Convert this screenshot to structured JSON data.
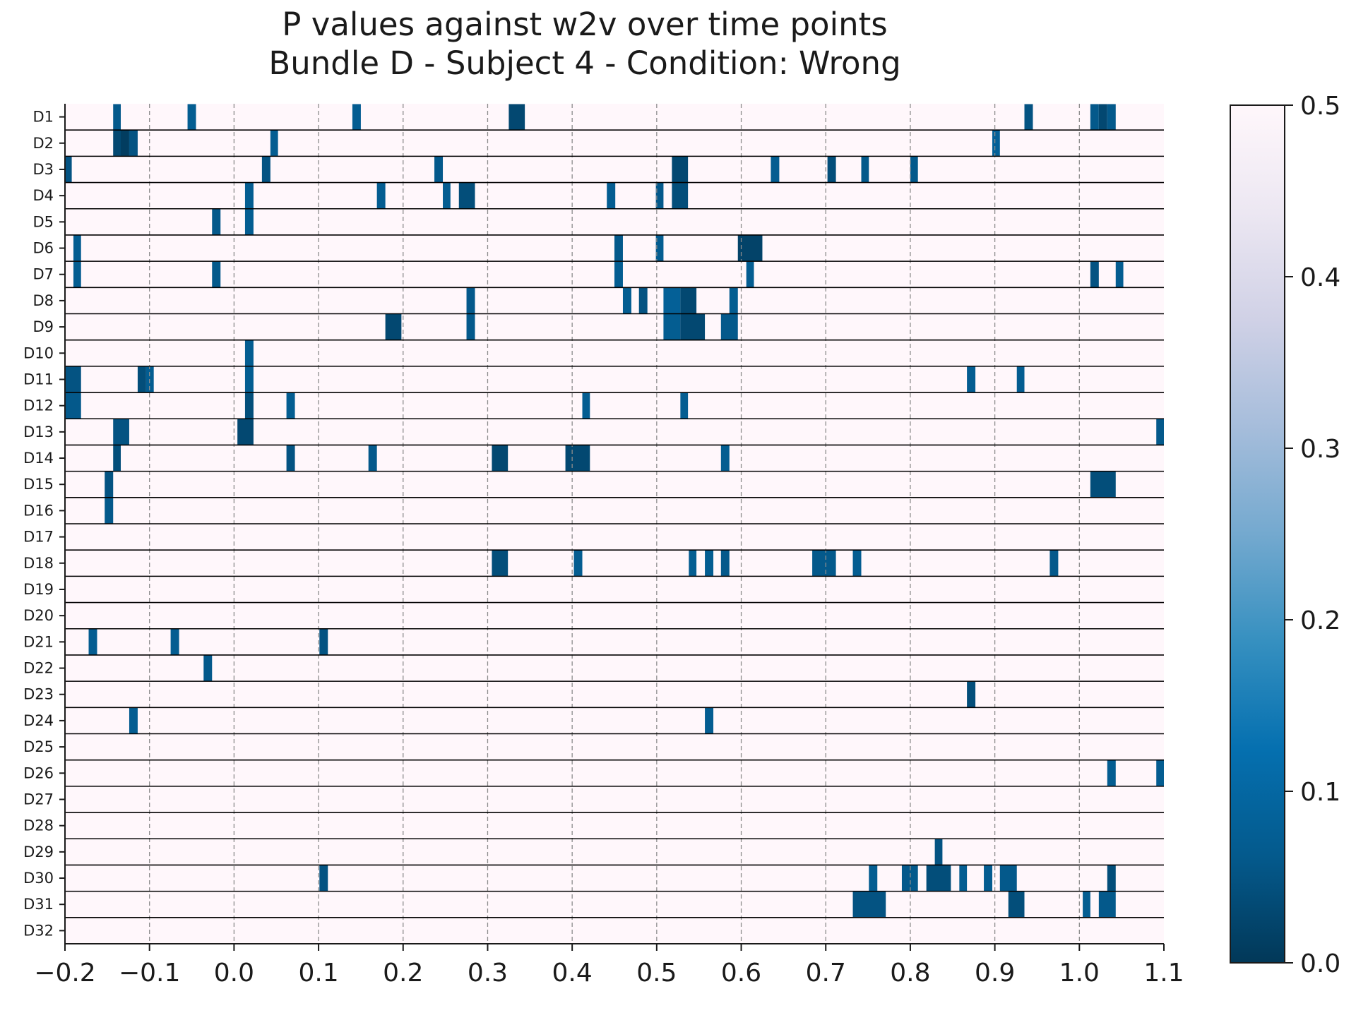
{
  "chart_data": {
    "type": "heatmap",
    "title": "P values against w2v over time points",
    "subtitle": "Bundle D - Subject 4 - Condition: Wrong",
    "xlabel": "",
    "ylabel": "",
    "xlim": [
      -0.2,
      1.1
    ],
    "x_ticks": [
      -0.2,
      -0.1,
      0.0,
      0.1,
      0.2,
      0.3,
      0.4,
      0.5,
      0.6,
      0.7,
      0.8,
      0.9,
      1.0,
      1.1
    ],
    "x_tick_labels": [
      "−0.2",
      "−0.1",
      "0.0",
      "0.1",
      "0.2",
      "0.3",
      "0.4",
      "0.5",
      "0.6",
      "0.7",
      "0.8",
      "0.9",
      "1.0",
      "1.1"
    ],
    "vertical_gridlines": [
      -0.1,
      0.0,
      0.1,
      0.2,
      0.3,
      0.4,
      0.5,
      0.6,
      0.7,
      0.8,
      0.9,
      1.0
    ],
    "rows": [
      "D1",
      "D2",
      "D3",
      "D4",
      "D5",
      "D6",
      "D7",
      "D8",
      "D9",
      "D10",
      "D11",
      "D12",
      "D13",
      "D14",
      "D15",
      "D16",
      "D17",
      "D18",
      "D19",
      "D20",
      "D21",
      "D22",
      "D23",
      "D24",
      "D25",
      "D26",
      "D27",
      "D28",
      "D29",
      "D30",
      "D31",
      "D32"
    ],
    "background_value": 0.5,
    "colorbar": {
      "min": 0.0,
      "max": 0.5,
      "ticks": [
        0.0,
        0.1,
        0.2,
        0.3,
        0.4,
        0.5
      ],
      "tick_labels": [
        "0.0",
        "0.1",
        "0.2",
        "0.3",
        "0.4",
        "0.5"
      ],
      "colormap": [
        "#023858",
        "#045a8d",
        "#0570b0",
        "#3690c0",
        "#74a9cf",
        "#a6bddb",
        "#d0d1e6",
        "#ece7f2",
        "#fff7fb"
      ]
    },
    "cells": [
      {
        "row": 0,
        "x0": -0.143,
        "x1": -0.134,
        "p": 0.06
      },
      {
        "row": 0,
        "x0": -0.055,
        "x1": -0.045,
        "p": 0.07
      },
      {
        "row": 0,
        "x0": 0.14,
        "x1": 0.15,
        "p": 0.07
      },
      {
        "row": 0,
        "x0": 0.325,
        "x1": 0.344,
        "p": 0.03
      },
      {
        "row": 0,
        "x0": 0.935,
        "x1": 0.945,
        "p": 0.05
      },
      {
        "row": 0,
        "x0": 1.013,
        "x1": 1.023,
        "p": 0.06
      },
      {
        "row": 0,
        "x0": 1.023,
        "x1": 1.033,
        "p": 0.03
      },
      {
        "row": 0,
        "x0": 1.033,
        "x1": 1.043,
        "p": 0.06
      },
      {
        "row": 1,
        "x0": -0.143,
        "x1": -0.134,
        "p": 0.03
      },
      {
        "row": 1,
        "x0": -0.134,
        "x1": -0.124,
        "p": 0.01
      },
      {
        "row": 1,
        "x0": -0.124,
        "x1": -0.114,
        "p": 0.05
      },
      {
        "row": 1,
        "x0": 0.043,
        "x1": 0.052,
        "p": 0.07
      },
      {
        "row": 1,
        "x0": 0.897,
        "x1": 0.906,
        "p": 0.08
      },
      {
        "row": 2,
        "x0": -0.2,
        "x1": -0.192,
        "p": 0.05
      },
      {
        "row": 2,
        "x0": 0.033,
        "x1": 0.043,
        "p": 0.05
      },
      {
        "row": 2,
        "x0": 0.237,
        "x1": 0.247,
        "p": 0.06
      },
      {
        "row": 2,
        "x0": 0.518,
        "x1": 0.537,
        "p": 0.03
      },
      {
        "row": 2,
        "x0": 0.635,
        "x1": 0.645,
        "p": 0.07
      },
      {
        "row": 2,
        "x0": 0.702,
        "x1": 0.712,
        "p": 0.04
      },
      {
        "row": 2,
        "x0": 0.742,
        "x1": 0.751,
        "p": 0.06
      },
      {
        "row": 2,
        "x0": 0.8,
        "x1": 0.809,
        "p": 0.06
      },
      {
        "row": 3,
        "x0": 0.013,
        "x1": 0.023,
        "p": 0.07
      },
      {
        "row": 3,
        "x0": 0.169,
        "x1": 0.179,
        "p": 0.07
      },
      {
        "row": 3,
        "x0": 0.247,
        "x1": 0.256,
        "p": 0.07
      },
      {
        "row": 3,
        "x0": 0.266,
        "x1": 0.285,
        "p": 0.04
      },
      {
        "row": 3,
        "x0": 0.441,
        "x1": 0.451,
        "p": 0.07
      },
      {
        "row": 3,
        "x0": 0.499,
        "x1": 0.508,
        "p": 0.06
      },
      {
        "row": 3,
        "x0": 0.518,
        "x1": 0.537,
        "p": 0.04
      },
      {
        "row": 4,
        "x0": -0.026,
        "x1": -0.016,
        "p": 0.06
      },
      {
        "row": 4,
        "x0": 0.013,
        "x1": 0.023,
        "p": 0.07
      },
      {
        "row": 5,
        "x0": -0.19,
        "x1": -0.181,
        "p": 0.07
      },
      {
        "row": 5,
        "x0": 0.45,
        "x1": 0.46,
        "p": 0.06
      },
      {
        "row": 5,
        "x0": 0.499,
        "x1": 0.508,
        "p": 0.07
      },
      {
        "row": 5,
        "x0": 0.596,
        "x1": 0.625,
        "p": 0.02
      },
      {
        "row": 6,
        "x0": -0.19,
        "x1": -0.181,
        "p": 0.07
      },
      {
        "row": 6,
        "x0": -0.026,
        "x1": -0.016,
        "p": 0.06
      },
      {
        "row": 6,
        "x0": 0.45,
        "x1": 0.46,
        "p": 0.07
      },
      {
        "row": 6,
        "x0": 0.606,
        "x1": 0.615,
        "p": 0.07
      },
      {
        "row": 6,
        "x0": 1.013,
        "x1": 1.023,
        "p": 0.05
      },
      {
        "row": 6,
        "x0": 1.043,
        "x1": 1.052,
        "p": 0.07
      },
      {
        "row": 7,
        "x0": 0.275,
        "x1": 0.285,
        "p": 0.06
      },
      {
        "row": 7,
        "x0": 0.46,
        "x1": 0.47,
        "p": 0.07
      },
      {
        "row": 7,
        "x0": 0.479,
        "x1": 0.489,
        "p": 0.05
      },
      {
        "row": 7,
        "x0": 0.508,
        "x1": 0.528,
        "p": 0.08
      },
      {
        "row": 7,
        "x0": 0.528,
        "x1": 0.547,
        "p": 0.03
      },
      {
        "row": 7,
        "x0": 0.586,
        "x1": 0.596,
        "p": 0.07
      },
      {
        "row": 8,
        "x0": 0.179,
        "x1": 0.198,
        "p": 0.03
      },
      {
        "row": 8,
        "x0": 0.275,
        "x1": 0.285,
        "p": 0.06
      },
      {
        "row": 8,
        "x0": 0.508,
        "x1": 0.528,
        "p": 0.07
      },
      {
        "row": 8,
        "x0": 0.528,
        "x1": 0.557,
        "p": 0.03
      },
      {
        "row": 8,
        "x0": 0.576,
        "x1": 0.596,
        "p": 0.06
      },
      {
        "row": 9,
        "x0": 0.013,
        "x1": 0.023,
        "p": 0.07
      },
      {
        "row": 10,
        "x0": -0.2,
        "x1": -0.181,
        "p": 0.05
      },
      {
        "row": 10,
        "x0": -0.114,
        "x1": -0.104,
        "p": 0.04
      },
      {
        "row": 10,
        "x0": -0.104,
        "x1": -0.095,
        "p": 0.07
      },
      {
        "row": 10,
        "x0": 0.013,
        "x1": 0.023,
        "p": 0.07
      },
      {
        "row": 10,
        "x0": 0.867,
        "x1": 0.877,
        "p": 0.07
      },
      {
        "row": 10,
        "x0": 0.926,
        "x1": 0.935,
        "p": 0.07
      },
      {
        "row": 11,
        "x0": -0.2,
        "x1": -0.181,
        "p": 0.06
      },
      {
        "row": 11,
        "x0": 0.013,
        "x1": 0.023,
        "p": 0.04
      },
      {
        "row": 11,
        "x0": 0.062,
        "x1": 0.072,
        "p": 0.07
      },
      {
        "row": 11,
        "x0": 0.412,
        "x1": 0.421,
        "p": 0.07
      },
      {
        "row": 11,
        "x0": 0.528,
        "x1": 0.537,
        "p": 0.07
      },
      {
        "row": 12,
        "x0": -0.143,
        "x1": -0.124,
        "p": 0.05
      },
      {
        "row": 12,
        "x0": 0.004,
        "x1": 0.023,
        "p": 0.03
      },
      {
        "row": 12,
        "x0": 1.091,
        "x1": 1.1,
        "p": 0.06
      },
      {
        "row": 13,
        "x0": -0.143,
        "x1": -0.134,
        "p": 0.04
      },
      {
        "row": 13,
        "x0": 0.062,
        "x1": 0.072,
        "p": 0.05
      },
      {
        "row": 13,
        "x0": 0.159,
        "x1": 0.169,
        "p": 0.06
      },
      {
        "row": 13,
        "x0": 0.305,
        "x1": 0.324,
        "p": 0.03
      },
      {
        "row": 13,
        "x0": 0.392,
        "x1": 0.421,
        "p": 0.03
      },
      {
        "row": 13,
        "x0": 0.576,
        "x1": 0.586,
        "p": 0.07
      },
      {
        "row": 14,
        "x0": -0.153,
        "x1": -0.143,
        "p": 0.05
      },
      {
        "row": 14,
        "x0": 1.013,
        "x1": 1.043,
        "p": 0.04
      },
      {
        "row": 15,
        "x0": -0.153,
        "x1": -0.143,
        "p": 0.06
      },
      {
        "row": 17,
        "x0": 0.305,
        "x1": 0.324,
        "p": 0.04
      },
      {
        "row": 17,
        "x0": 0.402,
        "x1": 0.412,
        "p": 0.07
      },
      {
        "row": 17,
        "x0": 0.538,
        "x1": 0.547,
        "p": 0.07
      },
      {
        "row": 17,
        "x0": 0.557,
        "x1": 0.567,
        "p": 0.07
      },
      {
        "row": 17,
        "x0": 0.576,
        "x1": 0.586,
        "p": 0.06
      },
      {
        "row": 17,
        "x0": 0.684,
        "x1": 0.712,
        "p": 0.06
      },
      {
        "row": 17,
        "x0": 0.732,
        "x1": 0.742,
        "p": 0.07
      },
      {
        "row": 17,
        "x0": 0.965,
        "x1": 0.975,
        "p": 0.06
      },
      {
        "row": 20,
        "x0": -0.172,
        "x1": -0.162,
        "p": 0.07
      },
      {
        "row": 20,
        "x0": -0.075,
        "x1": -0.065,
        "p": 0.07
      },
      {
        "row": 20,
        "x0": 0.101,
        "x1": 0.111,
        "p": 0.05
      },
      {
        "row": 21,
        "x0": -0.036,
        "x1": -0.026,
        "p": 0.06
      },
      {
        "row": 22,
        "x0": 0.867,
        "x1": 0.877,
        "p": 0.04
      },
      {
        "row": 23,
        "x0": -0.124,
        "x1": -0.114,
        "p": 0.07
      },
      {
        "row": 23,
        "x0": 0.557,
        "x1": 0.567,
        "p": 0.07
      },
      {
        "row": 25,
        "x0": 1.033,
        "x1": 1.043,
        "p": 0.07
      },
      {
        "row": 25,
        "x0": 1.091,
        "x1": 1.1,
        "p": 0.07
      },
      {
        "row": 28,
        "x0": 0.829,
        "x1": 0.838,
        "p": 0.05
      },
      {
        "row": 29,
        "x0": 0.101,
        "x1": 0.111,
        "p": 0.05
      },
      {
        "row": 29,
        "x0": 0.751,
        "x1": 0.761,
        "p": 0.07
      },
      {
        "row": 29,
        "x0": 0.79,
        "x1": 0.809,
        "p": 0.06
      },
      {
        "row": 29,
        "x0": 0.819,
        "x1": 0.848,
        "p": 0.04
      },
      {
        "row": 29,
        "x0": 0.858,
        "x1": 0.867,
        "p": 0.07
      },
      {
        "row": 29,
        "x0": 0.887,
        "x1": 0.897,
        "p": 0.07
      },
      {
        "row": 29,
        "x0": 0.906,
        "x1": 0.926,
        "p": 0.06
      },
      {
        "row": 29,
        "x0": 1.033,
        "x1": 1.043,
        "p": 0.04
      },
      {
        "row": 30,
        "x0": 0.732,
        "x1": 0.771,
        "p": 0.05
      },
      {
        "row": 30,
        "x0": 0.916,
        "x1": 0.935,
        "p": 0.04
      },
      {
        "row": 30,
        "x0": 1.004,
        "x1": 1.013,
        "p": 0.07
      },
      {
        "row": 30,
        "x0": 1.023,
        "x1": 1.043,
        "p": 0.06
      }
    ]
  }
}
